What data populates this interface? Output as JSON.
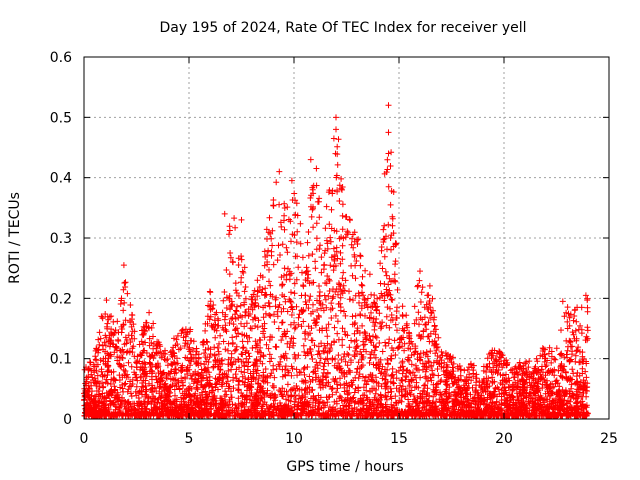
{
  "chart_data": {
    "type": "scatter",
    "title": "Day 195 of 2024, Rate Of TEC Index for receiver yell",
    "xlabel": "GPS time / hours",
    "ylabel": "ROTI / TECUs",
    "xlim": [
      0,
      25
    ],
    "ylim": [
      0,
      0.6
    ],
    "x_ticks": [
      0,
      5,
      10,
      15,
      20,
      25
    ],
    "x_tick_labels": [
      "0",
      "5",
      "10",
      "15",
      "20",
      "25"
    ],
    "y_ticks": [
      0,
      0.1,
      0.2,
      0.3,
      0.4,
      0.5,
      0.6
    ],
    "y_tick_labels": [
      "0",
      "0.1",
      "0.2",
      "0.3",
      "0.4",
      "0.5",
      "0.6"
    ],
    "grid": true,
    "marker": "plus",
    "series_color": "#ff0000",
    "envelope": {
      "x": [
        0,
        0.5,
        1,
        1.5,
        2,
        2.5,
        3,
        3.5,
        4,
        4.5,
        5,
        5.5,
        6,
        6.5,
        7,
        7.5,
        8,
        8.5,
        9,
        9.5,
        10,
        10.5,
        11,
        11.5,
        12,
        12.5,
        13,
        13.5,
        14,
        14.5,
        15,
        15.5,
        16,
        16.5,
        17,
        17.5,
        18,
        18.5,
        19,
        19.5,
        20,
        20.5,
        21,
        21.5,
        22,
        22.5,
        23,
        23.5,
        24
      ],
      "upper": [
        0.08,
        0.1,
        0.2,
        0.15,
        0.25,
        0.12,
        0.19,
        0.13,
        0.1,
        0.15,
        0.15,
        0.1,
        0.21,
        0.15,
        0.34,
        0.3,
        0.2,
        0.25,
        0.41,
        0.35,
        0.39,
        0.3,
        0.43,
        0.33,
        0.5,
        0.34,
        0.3,
        0.25,
        0.2,
        0.52,
        0.23,
        0.15,
        0.24,
        0.22,
        0.12,
        0.1,
        0.08,
        0.09,
        0.08,
        0.12,
        0.1,
        0.08,
        0.1,
        0.1,
        0.12,
        0.11,
        0.19,
        0.18,
        0.2
      ]
    },
    "peaks": [
      {
        "x": 1.9,
        "y": 0.255
      },
      {
        "x": 6.7,
        "y": 0.34
      },
      {
        "x": 7.5,
        "y": 0.33
      },
      {
        "x": 9.3,
        "y": 0.41
      },
      {
        "x": 9.9,
        "y": 0.395
      },
      {
        "x": 10.8,
        "y": 0.43
      },
      {
        "x": 12.0,
        "y": 0.5
      },
      {
        "x": 12.0,
        "y": 0.48
      },
      {
        "x": 11.9,
        "y": 0.465
      },
      {
        "x": 12.5,
        "y": 0.335
      },
      {
        "x": 14.5,
        "y": 0.52
      },
      {
        "x": 14.5,
        "y": 0.475
      },
      {
        "x": 14.5,
        "y": 0.44
      },
      {
        "x": 14.6,
        "y": 0.355
      },
      {
        "x": 14.6,
        "y": 0.3
      },
      {
        "x": 16.0,
        "y": 0.245
      },
      {
        "x": 22.8,
        "y": 0.195
      },
      {
        "x": 23.9,
        "y": 0.205
      },
      {
        "x": 23.7,
        "y": 0.185
      }
    ]
  }
}
